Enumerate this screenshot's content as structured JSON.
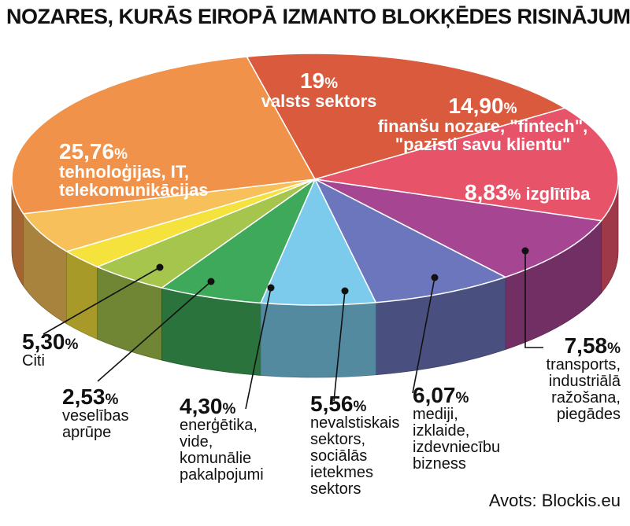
{
  "title": "NOZARES, KURĀS EIROPĀ IZMANTO BLOKĶĒDES RISINĀJUMUS",
  "source": "Avots: Blockis.eu",
  "chart_data": {
    "type": "pie",
    "title": "NOZARES, KURĀS EIROPĀ IZMANTO BLOKĶĒDES RISINĀJUMUS",
    "unit": "%",
    "slices": [
      {
        "value": 19,
        "value_label": "19",
        "label_lines": [
          "valsts sektors"
        ],
        "color": "#d95a3d"
      },
      {
        "value": 14.9,
        "value_label": "14,90",
        "label_lines": [
          "finanšu nozare, \"fintech\",",
          "\"pazīsti savu klientu\""
        ],
        "color": "#e7546a"
      },
      {
        "value": 8.83,
        "value_label": "8,83",
        "label_lines": [
          "izglītība"
        ],
        "color": "#a64592"
      },
      {
        "value": 7.58,
        "value_label": "7,58",
        "label_lines": [
          "transports,",
          "industriālā",
          "ražošana,",
          "piegādes"
        ],
        "color": "#6c76bc"
      },
      {
        "value": 6.07,
        "value_label": "6,07",
        "label_lines": [
          "mediji,",
          "izklaide,",
          "izdevniecību",
          "bizness"
        ],
        "color": "#7ccbec"
      },
      {
        "value": 5.56,
        "value_label": "5,56",
        "label_lines": [
          "nevalstiskais",
          "sektors,",
          "sociālās",
          "ietekmes",
          "sektors"
        ],
        "color": "#3ea95a"
      },
      {
        "value": 4.3,
        "value_label": "4,30",
        "label_lines": [
          "enerģētika,",
          "vide,",
          "komunālie",
          "pakalpojumi"
        ],
        "color": "#a6c54d"
      },
      {
        "value": 2.53,
        "value_label": "2,53",
        "label_lines": [
          "veselības",
          "aprūpe"
        ],
        "color": "#f6e23c"
      },
      {
        "value": 5.3,
        "value_label": "5,30",
        "label_lines": [
          "Citi"
        ],
        "color": "#f7c05a"
      },
      {
        "value": 25.76,
        "value_label": "25,76",
        "label_lines": [
          "tehnoloģijas, IT,",
          "telekomunikācijas"
        ],
        "color": "#f0924a"
      }
    ]
  }
}
